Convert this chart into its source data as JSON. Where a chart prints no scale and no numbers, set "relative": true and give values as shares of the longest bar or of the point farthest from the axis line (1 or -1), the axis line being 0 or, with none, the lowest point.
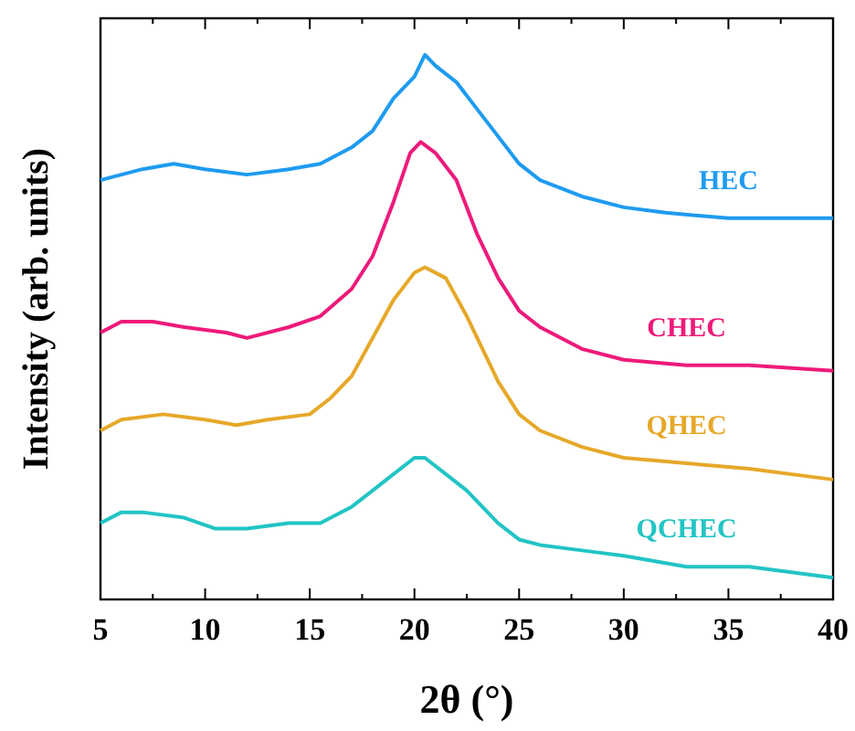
{
  "chart_data": {
    "type": "line",
    "relative": true,
    "xlabel": "2θ (°)",
    "ylabel": "Intensity (arb. units)",
    "xlim": [
      5,
      40
    ],
    "xticks": [
      5,
      {
        "value": 7.5,
        "label": null
      },
      10,
      {
        "value": 12.5,
        "label": null
      },
      15,
      {
        "value": 17.5,
        "label": null
      },
      20,
      {
        "value": 22.5,
        "label": null
      },
      25,
      {
        "value": 27.5,
        "label": null
      },
      30,
      {
        "value": 32.5,
        "label": null
      },
      35,
      {
        "value": 37.5,
        "label": null
      },
      40
    ],
    "marker": "none",
    "line_style": "solid",
    "grid": false,
    "series": [
      {
        "name": "HEC",
        "color": "#1e9bf0",
        "x": [
          5,
          7,
          8.5,
          10,
          12,
          14,
          15.5,
          17,
          18,
          19,
          20,
          20.5,
          21,
          22,
          23,
          24,
          25,
          26,
          28,
          30,
          32,
          35,
          38,
          40
        ],
        "values": [
          0.77,
          0.79,
          0.8,
          0.79,
          0.78,
          0.79,
          0.8,
          0.83,
          0.86,
          0.92,
          0.96,
          1,
          0.98,
          0.95,
          0.9,
          0.85,
          0.8,
          0.77,
          0.74,
          0.72,
          0.71,
          0.7,
          0.7,
          0.7
        ]
      },
      {
        "name": "CHEC",
        "color": "#ee1a7a",
        "x": [
          5,
          6,
          7.5,
          9,
          11,
          12,
          14,
          15.5,
          17,
          18,
          19,
          19.8,
          20.3,
          21,
          22,
          23,
          24,
          25,
          26,
          28,
          30,
          33,
          36,
          40
        ],
        "values": [
          0.49,
          0.51,
          0.51,
          0.5,
          0.49,
          0.48,
          0.5,
          0.52,
          0.57,
          0.63,
          0.73,
          0.82,
          0.84,
          0.82,
          0.77,
          0.67,
          0.59,
          0.53,
          0.5,
          0.46,
          0.44,
          0.43,
          0.43,
          0.42
        ]
      },
      {
        "name": "QHEC",
        "color": "#e6a829",
        "x": [
          5,
          6,
          8,
          10,
          11.5,
          13,
          15,
          16,
          17,
          18,
          19,
          20,
          20.5,
          21.5,
          22.5,
          24,
          25,
          26,
          28,
          30,
          33,
          36,
          40
        ],
        "values": [
          0.31,
          0.33,
          0.34,
          0.33,
          0.32,
          0.33,
          0.34,
          0.37,
          0.41,
          0.48,
          0.55,
          0.6,
          0.61,
          0.59,
          0.52,
          0.4,
          0.34,
          0.31,
          0.28,
          0.26,
          0.25,
          0.24,
          0.22
        ]
      },
      {
        "name": "QCHEC",
        "color": "#22c4c4",
        "x": [
          5,
          6,
          7,
          9,
          10.5,
          12,
          14,
          15.5,
          17,
          18,
          19,
          20,
          20.5,
          21.5,
          22.5,
          24,
          25,
          26,
          28,
          30,
          33,
          36,
          40
        ],
        "values": [
          0.14,
          0.16,
          0.16,
          0.15,
          0.13,
          0.13,
          0.14,
          0.14,
          0.17,
          0.2,
          0.23,
          0.26,
          0.26,
          0.23,
          0.2,
          0.14,
          0.11,
          0.1,
          0.09,
          0.08,
          0.06,
          0.06,
          0.04
        ]
      }
    ]
  }
}
